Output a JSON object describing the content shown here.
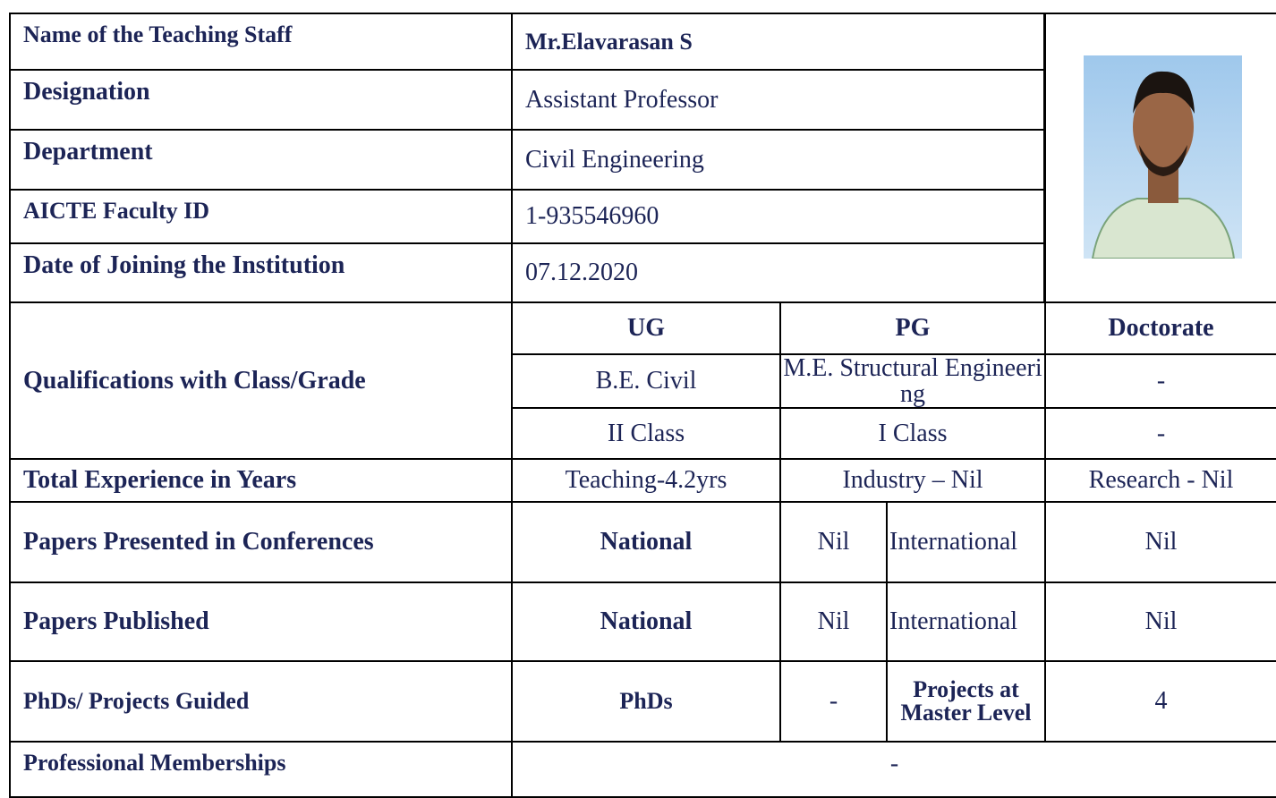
{
  "info": [
    {
      "label": "Name of the Teaching Staff",
      "value": "Mr.Elavarasan S"
    },
    {
      "label": "Designation",
      "value": "Assistant Professor"
    },
    {
      "label": "Department",
      "value": "Civil Engineering"
    },
    {
      "label": "AICTE Faculty ID",
      "value": "1-935546960"
    },
    {
      "label": "Date of Joining the Institution",
      "value": "07.12.2020"
    }
  ],
  "qualifications": {
    "label": "Qualifications with Class/Grade",
    "headers": [
      "UG",
      "PG",
      "Doctorate"
    ],
    "degrees": [
      "B.E. Civil",
      "M.E. Structural Engineering",
      "-"
    ],
    "classes": [
      "II Class",
      "I Class",
      "-"
    ]
  },
  "experience": {
    "label": "Total Experience in Years",
    "values": [
      "Teaching-4.2yrs",
      "Industry – Nil",
      "Research - Nil"
    ]
  },
  "papers_presented": {
    "label": "Papers Presented in Conferences",
    "national_label": "National",
    "national": "Nil",
    "international_label": "International",
    "international": "Nil"
  },
  "papers_published": {
    "label": "Papers Published",
    "national_label": "National",
    "national": "Nil",
    "international_label": "International",
    "international": "Nil"
  },
  "guidance": {
    "label": "PhDs/ Projects Guided",
    "phds_label": "PhDs",
    "phds": "-",
    "projects_label": "Projects at Master Level",
    "projects": "4"
  },
  "memberships": {
    "label": "Professional Memberships",
    "value": "-"
  }
}
